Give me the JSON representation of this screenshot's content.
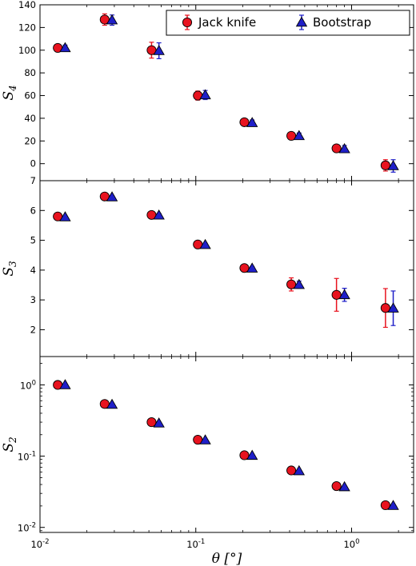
{
  "chart_data": {
    "type": "scatter",
    "xlabel": "θ [°]",
    "x_scale": "log",
    "xlim": [
      0.01,
      2.5
    ],
    "x_ticks": [
      {
        "value": 0.01,
        "base": "10",
        "exp": "-2"
      },
      {
        "value": 0.1,
        "base": "10",
        "exp": "-1"
      },
      {
        "value": 1,
        "base": "10",
        "exp": "0"
      }
    ],
    "legend": {
      "placement": "top-right",
      "entries": [
        {
          "label": "Jack knife",
          "color": "#e8131f",
          "marker": "circle"
        },
        {
          "label": "Bootstrap",
          "color": "#1f1fc8",
          "marker": "triangle"
        }
      ]
    },
    "panels": [
      {
        "id": "s4",
        "ylabel": "S",
        "ylabel_sub": "4",
        "y_scale": "linear",
        "ylim": [
          -15,
          140
        ],
        "y_ticks": [
          "0",
          "20",
          "40",
          "60",
          "80",
          "100",
          "120",
          "140"
        ],
        "series": [
          {
            "name": "Jack knife",
            "x": [
              0.013,
              0.026,
              0.052,
              0.103,
              0.205,
              0.41,
              0.8,
              1.65
            ],
            "y": [
              102,
              127,
              100,
              60,
              36.5,
              24.5,
              13.5,
              -1.5
            ],
            "err": [
              2.5,
              5,
              7,
              4,
              2.5,
              2.5,
              3,
              5
            ]
          },
          {
            "name": "Bootstrap",
            "x": [
              0.0145,
              0.029,
              0.058,
              0.115,
              0.23,
              0.46,
              0.9,
              1.85
            ],
            "y": [
              102,
              126.5,
              99.5,
              60.5,
              36,
              24.5,
              13,
              -2
            ],
            "err": [
              2.5,
              4.5,
              7,
              4,
              2.5,
              2.5,
              3,
              5.5
            ]
          }
        ]
      },
      {
        "id": "s3",
        "ylabel": "S",
        "ylabel_sub": "3",
        "y_scale": "linear",
        "ylim": [
          1.1,
          7
        ],
        "y_ticks": [
          "2",
          "3",
          "4",
          "5",
          "6",
          "7"
        ],
        "series": [
          {
            "name": "Jack knife",
            "x": [
              0.013,
              0.026,
              0.052,
              0.103,
              0.205,
              0.41,
              0.8,
              1.65
            ],
            "y": [
              5.8,
              6.47,
              5.85,
              4.86,
              4.07,
              3.52,
              3.17,
              2.73
            ],
            "err": [
              0.04,
              0.05,
              0.05,
              0.05,
              0.06,
              0.22,
              0.55,
              0.65
            ]
          },
          {
            "name": "Bootstrap",
            "x": [
              0.0145,
              0.029,
              0.058,
              0.115,
              0.23,
              0.46,
              0.9,
              1.85
            ],
            "y": [
              5.78,
              6.45,
              5.84,
              4.85,
              4.06,
              3.51,
              3.17,
              2.72
            ],
            "err": [
              0.04,
              0.05,
              0.06,
              0.05,
              0.06,
              0.12,
              0.22,
              0.58
            ]
          }
        ]
      },
      {
        "id": "s2",
        "ylabel": "S",
        "ylabel_sub": "2",
        "y_scale": "log",
        "ylim": [
          0.0085,
          2.5
        ],
        "y_ticks": [
          {
            "value": 1,
            "base": "10",
            "exp": "0"
          },
          {
            "value": 0.1,
            "base": "10",
            "exp": "-1"
          },
          {
            "value": 0.01,
            "base": "10",
            "exp": "-2"
          }
        ],
        "series": [
          {
            "name": "Jack knife",
            "x": [
              0.013,
              0.026,
              0.052,
              0.103,
              0.205,
              0.41,
              0.8,
              1.65
            ],
            "y": [
              1.0,
              0.54,
              0.3,
              0.17,
              0.103,
              0.063,
              0.038,
              0.0205
            ],
            "err": [
              0,
              0,
              0,
              0,
              0,
              0,
              0,
              0
            ]
          },
          {
            "name": "Bootstrap",
            "x": [
              0.0145,
              0.029,
              0.058,
              0.115,
              0.23,
              0.46,
              0.9,
              1.85
            ],
            "y": [
              1.0,
              0.53,
              0.29,
              0.168,
              0.102,
              0.062,
              0.037,
              0.0202
            ],
            "err": [
              0,
              0,
              0,
              0,
              0,
              0,
              0,
              0
            ]
          }
        ]
      }
    ]
  }
}
